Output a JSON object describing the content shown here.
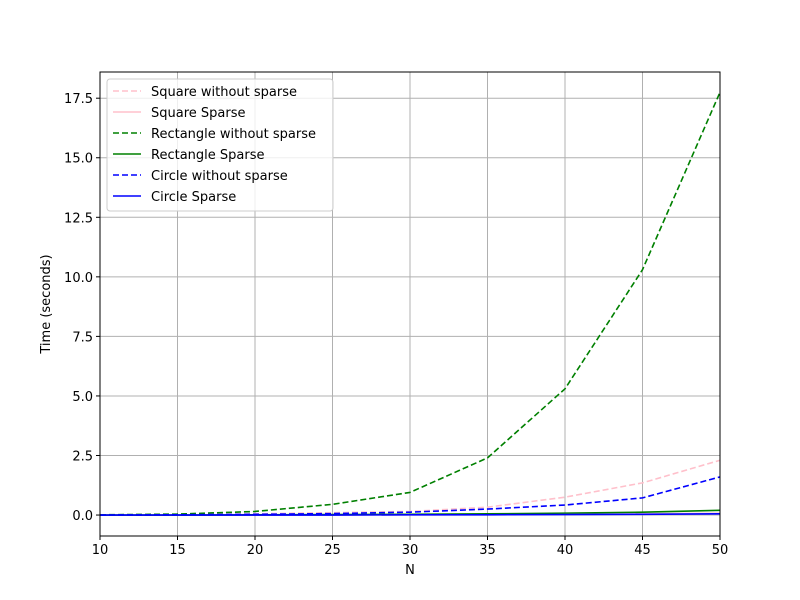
{
  "chart_data": {
    "type": "line",
    "title": "",
    "xlabel": "N",
    "ylabel": "Time (seconds)",
    "xlim": [
      10,
      50
    ],
    "ylim": [
      -0.88,
      18.6
    ],
    "xticks": [
      10,
      15,
      20,
      25,
      30,
      35,
      40,
      45,
      50
    ],
    "yticks": [
      0.0,
      2.5,
      5.0,
      7.5,
      10.0,
      12.5,
      15.0,
      17.5
    ],
    "xtick_labels": [
      "10",
      "15",
      "20",
      "25",
      "30",
      "35",
      "40",
      "45",
      "50"
    ],
    "ytick_labels": [
      "0.0",
      "2.5",
      "5.0",
      "7.5",
      "10.0",
      "12.5",
      "15.0",
      "17.5"
    ],
    "grid": true,
    "legend_position": "top-left",
    "x": [
      10,
      15,
      20,
      25,
      30,
      35,
      40,
      45,
      50
    ],
    "series": [
      {
        "name": "Square without sparse",
        "color": "#ffc0cb",
        "dashed": true,
        "values": [
          0.0,
          0.02,
          0.05,
          0.1,
          0.15,
          0.33,
          0.75,
          1.35,
          2.3
        ]
      },
      {
        "name": "Square Sparse",
        "color": "#ffc0cb",
        "dashed": false,
        "values": [
          0.0,
          0.0,
          0.0,
          0.0,
          0.01,
          0.02,
          0.03,
          0.05,
          0.08
        ]
      },
      {
        "name": "Rectangle without sparse",
        "color": "#008000",
        "dashed": true,
        "values": [
          0.01,
          0.04,
          0.15,
          0.45,
          0.95,
          2.4,
          5.3,
          10.3,
          17.75
        ]
      },
      {
        "name": "Rectangle Sparse",
        "color": "#008000",
        "dashed": false,
        "values": [
          0.0,
          0.0,
          0.01,
          0.02,
          0.03,
          0.05,
          0.08,
          0.12,
          0.2
        ]
      },
      {
        "name": "Circle without sparse",
        "color": "#0000ff",
        "dashed": true,
        "values": [
          0.0,
          0.01,
          0.03,
          0.06,
          0.12,
          0.25,
          0.42,
          0.72,
          1.6
        ]
      },
      {
        "name": "Circle Sparse",
        "color": "#0000ff",
        "dashed": false,
        "values": [
          0.0,
          0.0,
          0.0,
          0.0,
          0.01,
          0.01,
          0.02,
          0.03,
          0.05
        ]
      }
    ]
  }
}
